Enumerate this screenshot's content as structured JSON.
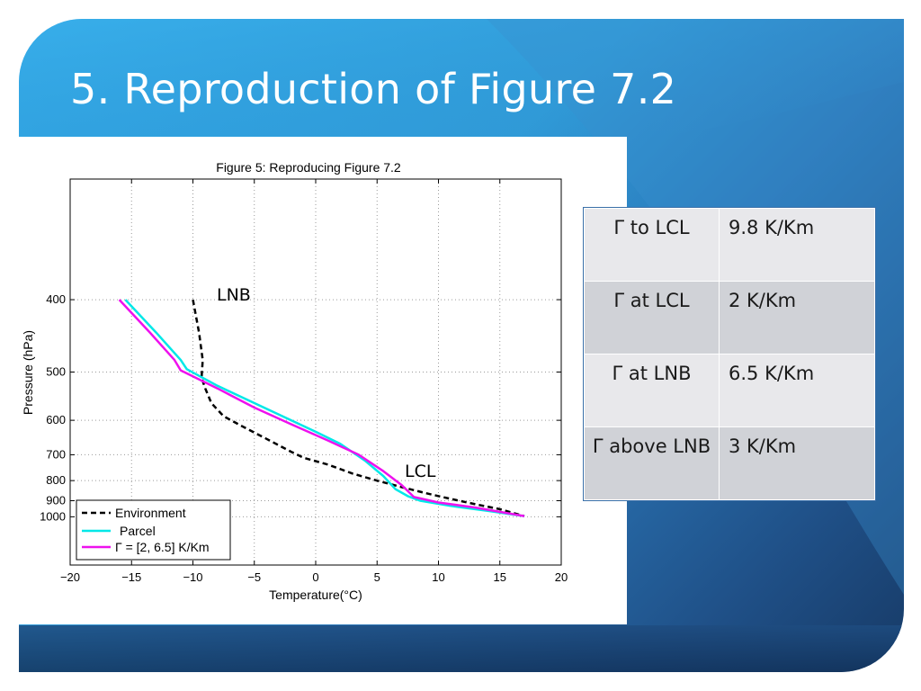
{
  "slide": {
    "title": "5. Reproduction of Figure 7.2"
  },
  "table": {
    "rows": [
      {
        "label": "Γ to LCL",
        "value": "9.8 K/Km"
      },
      {
        "label": "Γ at LCL",
        "value": "2 K/Km"
      },
      {
        "label": "Γ at LNB",
        "value": "6.5 K/Km"
      },
      {
        "label": "Γ above LNB",
        "value": "3 K/Km"
      }
    ]
  },
  "annotations": {
    "lnb": "LNB",
    "lcl": "LCL"
  },
  "colors": {
    "environment": "#000000",
    "parcel": "#00e8e8",
    "gamma": "#ee11ee"
  },
  "chart_data": {
    "type": "line",
    "title": "Figure 5: Reproducing Figure 7.2",
    "xlabel": "Temperature(°C)",
    "ylabel": "Pressure (hPa)",
    "xlim": [
      -20,
      20
    ],
    "x_ticks": [
      -20,
      -15,
      -10,
      -5,
      0,
      5,
      10,
      15,
      20
    ],
    "x_tick_labels": [
      "−20",
      "−15",
      "−10",
      "−5",
      "0",
      "5",
      "10",
      "15",
      "20"
    ],
    "y_axis": "reciprocal pressure, higher pressure lower on axis",
    "ylim": [
      300,
      1500
    ],
    "y_ticks": [
      400,
      500,
      600,
      700,
      800,
      900,
      1000
    ],
    "grid": true,
    "legend_position": "bottom-left",
    "series": [
      {
        "name": "Environment",
        "style": "dashed",
        "color": "#000000",
        "points": [
          [
            -10,
            400
          ],
          [
            -9.5,
            440
          ],
          [
            -9.2,
            480
          ],
          [
            -9.3,
            510
          ],
          [
            -9,
            530
          ],
          [
            -8.5,
            560
          ],
          [
            -7.5,
            590
          ],
          [
            -6,
            615
          ],
          [
            -4,
            650
          ],
          [
            -2,
            690
          ],
          [
            -1,
            710
          ],
          [
            1,
            735
          ],
          [
            3,
            770
          ],
          [
            5,
            800
          ],
          [
            7,
            830
          ],
          [
            9,
            860
          ],
          [
            11,
            890
          ],
          [
            13,
            920
          ],
          [
            15,
            950
          ],
          [
            17,
            995
          ]
        ]
      },
      {
        "name": "Parcel",
        "style": "solid",
        "color": "#00e8e8",
        "points": [
          [
            -15.5,
            400
          ],
          [
            -13,
            440
          ],
          [
            -11,
            480
          ],
          [
            -10.5,
            495
          ],
          [
            -8,
            525
          ],
          [
            -5,
            560
          ],
          [
            -2,
            600
          ],
          [
            0,
            630
          ],
          [
            2,
            665
          ],
          [
            4,
            720
          ],
          [
            5.5,
            780
          ],
          [
            6.5,
            840
          ],
          [
            7.5,
            875
          ],
          [
            8.5,
            900
          ],
          [
            11,
            930
          ],
          [
            14,
            960
          ],
          [
            17,
            995
          ]
        ]
      },
      {
        "name": "Γ = [2, 6.5] K/Km",
        "style": "solid",
        "color": "#ee11ee",
        "points": [
          [
            -16,
            400
          ],
          [
            -13.5,
            440
          ],
          [
            -11.5,
            480
          ],
          [
            -11,
            497
          ],
          [
            -8,
            530
          ],
          [
            -5,
            570
          ],
          [
            -2,
            610
          ],
          [
            1,
            655
          ],
          [
            3.5,
            700
          ],
          [
            5.5,
            760
          ],
          [
            7,
            820
          ],
          [
            8,
            880
          ],
          [
            10,
            910
          ],
          [
            13,
            940
          ],
          [
            17,
            995
          ]
        ]
      }
    ],
    "annotations": [
      "LNB",
      "LCL"
    ]
  }
}
